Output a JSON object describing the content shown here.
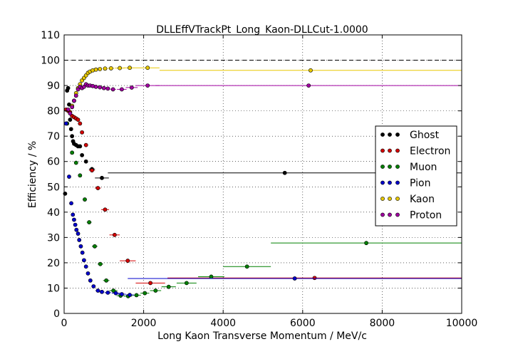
{
  "chart_data": {
    "type": "scatter",
    "title": "DLLEffVTrackPt_Long_Kaon-DLLCut-1.0000",
    "xlabel": "Long Kaon Transverse Momentum / MeV/c",
    "ylabel": "Efficiency / %",
    "xlim": [
      0,
      10000
    ],
    "ylim": [
      0,
      110
    ],
    "x_ticks": [
      "0",
      "2000",
      "4000",
      "6000",
      "8000",
      "10000"
    ],
    "y_ticks": [
      "0",
      "10",
      "20",
      "30",
      "40",
      "50",
      "60",
      "70",
      "80",
      "90",
      "100",
      "110"
    ],
    "grid": true,
    "reference_line_y": 100,
    "legend_position": "right",
    "series": [
      {
        "name": "Ghost",
        "color": "#000000",
        "points": [
          {
            "x": 25,
            "y": 47.3,
            "xerr": 25
          },
          {
            "x": 75,
            "y": 88.0,
            "xerr": 25
          },
          {
            "x": 100,
            "y": 89.0,
            "xerr": 25
          },
          {
            "x": 125,
            "y": 82.5,
            "xerr": 25
          },
          {
            "x": 150,
            "y": 76.5,
            "xerr": 25
          },
          {
            "x": 175,
            "y": 72.8,
            "xerr": 25
          },
          {
            "x": 200,
            "y": 70.0,
            "xerr": 25
          },
          {
            "x": 225,
            "y": 68.0,
            "xerr": 25
          },
          {
            "x": 250,
            "y": 67.0,
            "xerr": 25
          },
          {
            "x": 300,
            "y": 66.5,
            "xerr": 25
          },
          {
            "x": 350,
            "y": 66.0,
            "xerr": 25
          },
          {
            "x": 400,
            "y": 66.0,
            "xerr": 25
          },
          {
            "x": 450,
            "y": 62.5,
            "xerr": 25
          },
          {
            "x": 550,
            "y": 60.0,
            "xerr": 50
          },
          {
            "x": 700,
            "y": 57.0,
            "xerr": 75
          },
          {
            "x": 950,
            "y": 53.5,
            "xerr": 175
          },
          {
            "x": 5550,
            "y": 55.5,
            "xerr": 4450
          }
        ]
      },
      {
        "name": "Electron",
        "color": "#d40000",
        "points": [
          {
            "x": 50,
            "y": 80.5,
            "xerr": 25
          },
          {
            "x": 100,
            "y": 80.0,
            "xerr": 25
          },
          {
            "x": 150,
            "y": 79.5,
            "xerr": 25
          },
          {
            "x": 200,
            "y": 78.0,
            "xerr": 25
          },
          {
            "x": 250,
            "y": 77.5,
            "xerr": 25
          },
          {
            "x": 300,
            "y": 77.0,
            "xerr": 25
          },
          {
            "x": 350,
            "y": 76.5,
            "xerr": 25
          },
          {
            "x": 400,
            "y": 75.0,
            "xerr": 25
          },
          {
            "x": 450,
            "y": 71.5,
            "xerr": 25
          },
          {
            "x": 550,
            "y": 66.5,
            "xerr": 50
          },
          {
            "x": 700,
            "y": 56.5,
            "xerr": 75
          },
          {
            "x": 850,
            "y": 49.5,
            "xerr": 75
          },
          {
            "x": 1030,
            "y": 41.0,
            "xerr": 100
          },
          {
            "x": 1270,
            "y": 31.0,
            "xerr": 130
          },
          {
            "x": 1600,
            "y": 20.8,
            "xerr": 200
          },
          {
            "x": 2170,
            "y": 12.0,
            "xerr": 370
          },
          {
            "x": 6300,
            "y": 14.0,
            "xerr": 3700
          }
        ]
      },
      {
        "name": "Muon",
        "color": "#008000",
        "points": [
          {
            "x": 75,
            "y": 75.0,
            "xerr": 25
          },
          {
            "x": 200,
            "y": 63.5,
            "xerr": 25
          },
          {
            "x": 300,
            "y": 59.5,
            "xerr": 25
          },
          {
            "x": 400,
            "y": 54.5,
            "xerr": 25
          },
          {
            "x": 520,
            "y": 45.0,
            "xerr": 50
          },
          {
            "x": 630,
            "y": 36.0,
            "xerr": 60
          },
          {
            "x": 770,
            "y": 26.5,
            "xerr": 70
          },
          {
            "x": 910,
            "y": 19.5,
            "xerr": 70
          },
          {
            "x": 1060,
            "y": 13.0,
            "xerr": 80
          },
          {
            "x": 1240,
            "y": 9.0,
            "xerr": 100
          },
          {
            "x": 1420,
            "y": 7.0,
            "xerr": 100
          },
          {
            "x": 1610,
            "y": 6.8,
            "xerr": 100
          },
          {
            "x": 1820,
            "y": 7.2,
            "xerr": 110
          },
          {
            "x": 2030,
            "y": 8.0,
            "xerr": 110
          },
          {
            "x": 2300,
            "y": 9.0,
            "xerr": 140
          },
          {
            "x": 2630,
            "y": 10.5,
            "xerr": 180
          },
          {
            "x": 3080,
            "y": 12.0,
            "xerr": 250
          },
          {
            "x": 3700,
            "y": 14.5,
            "xerr": 330
          },
          {
            "x": 4600,
            "y": 18.5,
            "xerr": 600
          },
          {
            "x": 7600,
            "y": 27.8,
            "xerr": 2400
          }
        ]
      },
      {
        "name": "Pion",
        "color": "#0000cc",
        "points": [
          {
            "x": 50,
            "y": 75.0,
            "xerr": 25
          },
          {
            "x": 125,
            "y": 54.0,
            "xerr": 25
          },
          {
            "x": 180,
            "y": 43.5,
            "xerr": 25
          },
          {
            "x": 220,
            "y": 39.0,
            "xerr": 20
          },
          {
            "x": 250,
            "y": 37.0,
            "xerr": 20
          },
          {
            "x": 280,
            "y": 35.0,
            "xerr": 20
          },
          {
            "x": 310,
            "y": 33.0,
            "xerr": 20
          },
          {
            "x": 350,
            "y": 31.5,
            "xerr": 20
          },
          {
            "x": 380,
            "y": 29.0,
            "xerr": 20
          },
          {
            "x": 420,
            "y": 26.5,
            "xerr": 20
          },
          {
            "x": 460,
            "y": 24.0,
            "xerr": 20
          },
          {
            "x": 500,
            "y": 21.0,
            "xerr": 20
          },
          {
            "x": 550,
            "y": 18.5,
            "xerr": 25
          },
          {
            "x": 600,
            "y": 15.8,
            "xerr": 25
          },
          {
            "x": 660,
            "y": 13.0,
            "xerr": 30
          },
          {
            "x": 740,
            "y": 10.7,
            "xerr": 40
          },
          {
            "x": 850,
            "y": 9.0,
            "xerr": 60
          },
          {
            "x": 950,
            "y": 8.5,
            "xerr": 60
          },
          {
            "x": 1100,
            "y": 8.2,
            "xerr": 80
          },
          {
            "x": 1300,
            "y": 8.0,
            "xerr": 100
          },
          {
            "x": 1450,
            "y": 7.6,
            "xerr": 100
          },
          {
            "x": 1650,
            "y": 7.3,
            "xerr": 100
          },
          {
            "x": 5800,
            "y": 13.8,
            "xerr": 4200
          }
        ]
      },
      {
        "name": "Kaon",
        "color": "#e8c800",
        "points": [
          {
            "x": 200,
            "y": 82.0,
            "xerr": 25
          },
          {
            "x": 250,
            "y": 84.0,
            "xerr": 25
          },
          {
            "x": 300,
            "y": 87.0,
            "xerr": 25
          },
          {
            "x": 350,
            "y": 89.0,
            "xerr": 25
          },
          {
            "x": 400,
            "y": 90.5,
            "xerr": 25
          },
          {
            "x": 450,
            "y": 92.0,
            "xerr": 25
          },
          {
            "x": 500,
            "y": 93.0,
            "xerr": 25
          },
          {
            "x": 550,
            "y": 94.0,
            "xerr": 25
          },
          {
            "x": 600,
            "y": 95.0,
            "xerr": 25
          },
          {
            "x": 650,
            "y": 95.5,
            "xerr": 25
          },
          {
            "x": 720,
            "y": 96.0,
            "xerr": 35
          },
          {
            "x": 800,
            "y": 96.3,
            "xerr": 40
          },
          {
            "x": 900,
            "y": 96.5,
            "xerr": 50
          },
          {
            "x": 1030,
            "y": 96.7,
            "xerr": 60
          },
          {
            "x": 1180,
            "y": 96.8,
            "xerr": 80
          },
          {
            "x": 1400,
            "y": 96.9,
            "xerr": 120
          },
          {
            "x": 1650,
            "y": 97.0,
            "xerr": 150
          },
          {
            "x": 2100,
            "y": 97.0,
            "xerr": 300
          },
          {
            "x": 6200,
            "y": 96.0,
            "xerr": 3800
          }
        ]
      },
      {
        "name": "Proton",
        "color": "#a000a0",
        "points": [
          {
            "x": 100,
            "y": 80.5,
            "xerr": 25
          },
          {
            "x": 150,
            "y": 79.0,
            "xerr": 25
          },
          {
            "x": 200,
            "y": 81.5,
            "xerr": 25
          },
          {
            "x": 250,
            "y": 84.0,
            "xerr": 25
          },
          {
            "x": 300,
            "y": 86.0,
            "xerr": 25
          },
          {
            "x": 350,
            "y": 88.5,
            "xerr": 25
          },
          {
            "x": 400,
            "y": 89.5,
            "xerr": 25
          },
          {
            "x": 450,
            "y": 89.0,
            "xerr": 25
          },
          {
            "x": 500,
            "y": 89.5,
            "xerr": 25
          },
          {
            "x": 550,
            "y": 90.5,
            "xerr": 25
          },
          {
            "x": 600,
            "y": 90.0,
            "xerr": 25
          },
          {
            "x": 650,
            "y": 90.0,
            "xerr": 25
          },
          {
            "x": 720,
            "y": 89.8,
            "xerr": 35
          },
          {
            "x": 800,
            "y": 89.5,
            "xerr": 40
          },
          {
            "x": 900,
            "y": 89.3,
            "xerr": 50
          },
          {
            "x": 1000,
            "y": 89.0,
            "xerr": 50
          },
          {
            "x": 1100,
            "y": 88.8,
            "xerr": 60
          },
          {
            "x": 1230,
            "y": 88.5,
            "xerr": 70
          },
          {
            "x": 1450,
            "y": 88.5,
            "xerr": 120
          },
          {
            "x": 1700,
            "y": 89.2,
            "xerr": 150
          },
          {
            "x": 2100,
            "y": 90.0,
            "xerr": 300
          },
          {
            "x": 6150,
            "y": 90.0,
            "xerr": 3850
          }
        ]
      }
    ]
  }
}
